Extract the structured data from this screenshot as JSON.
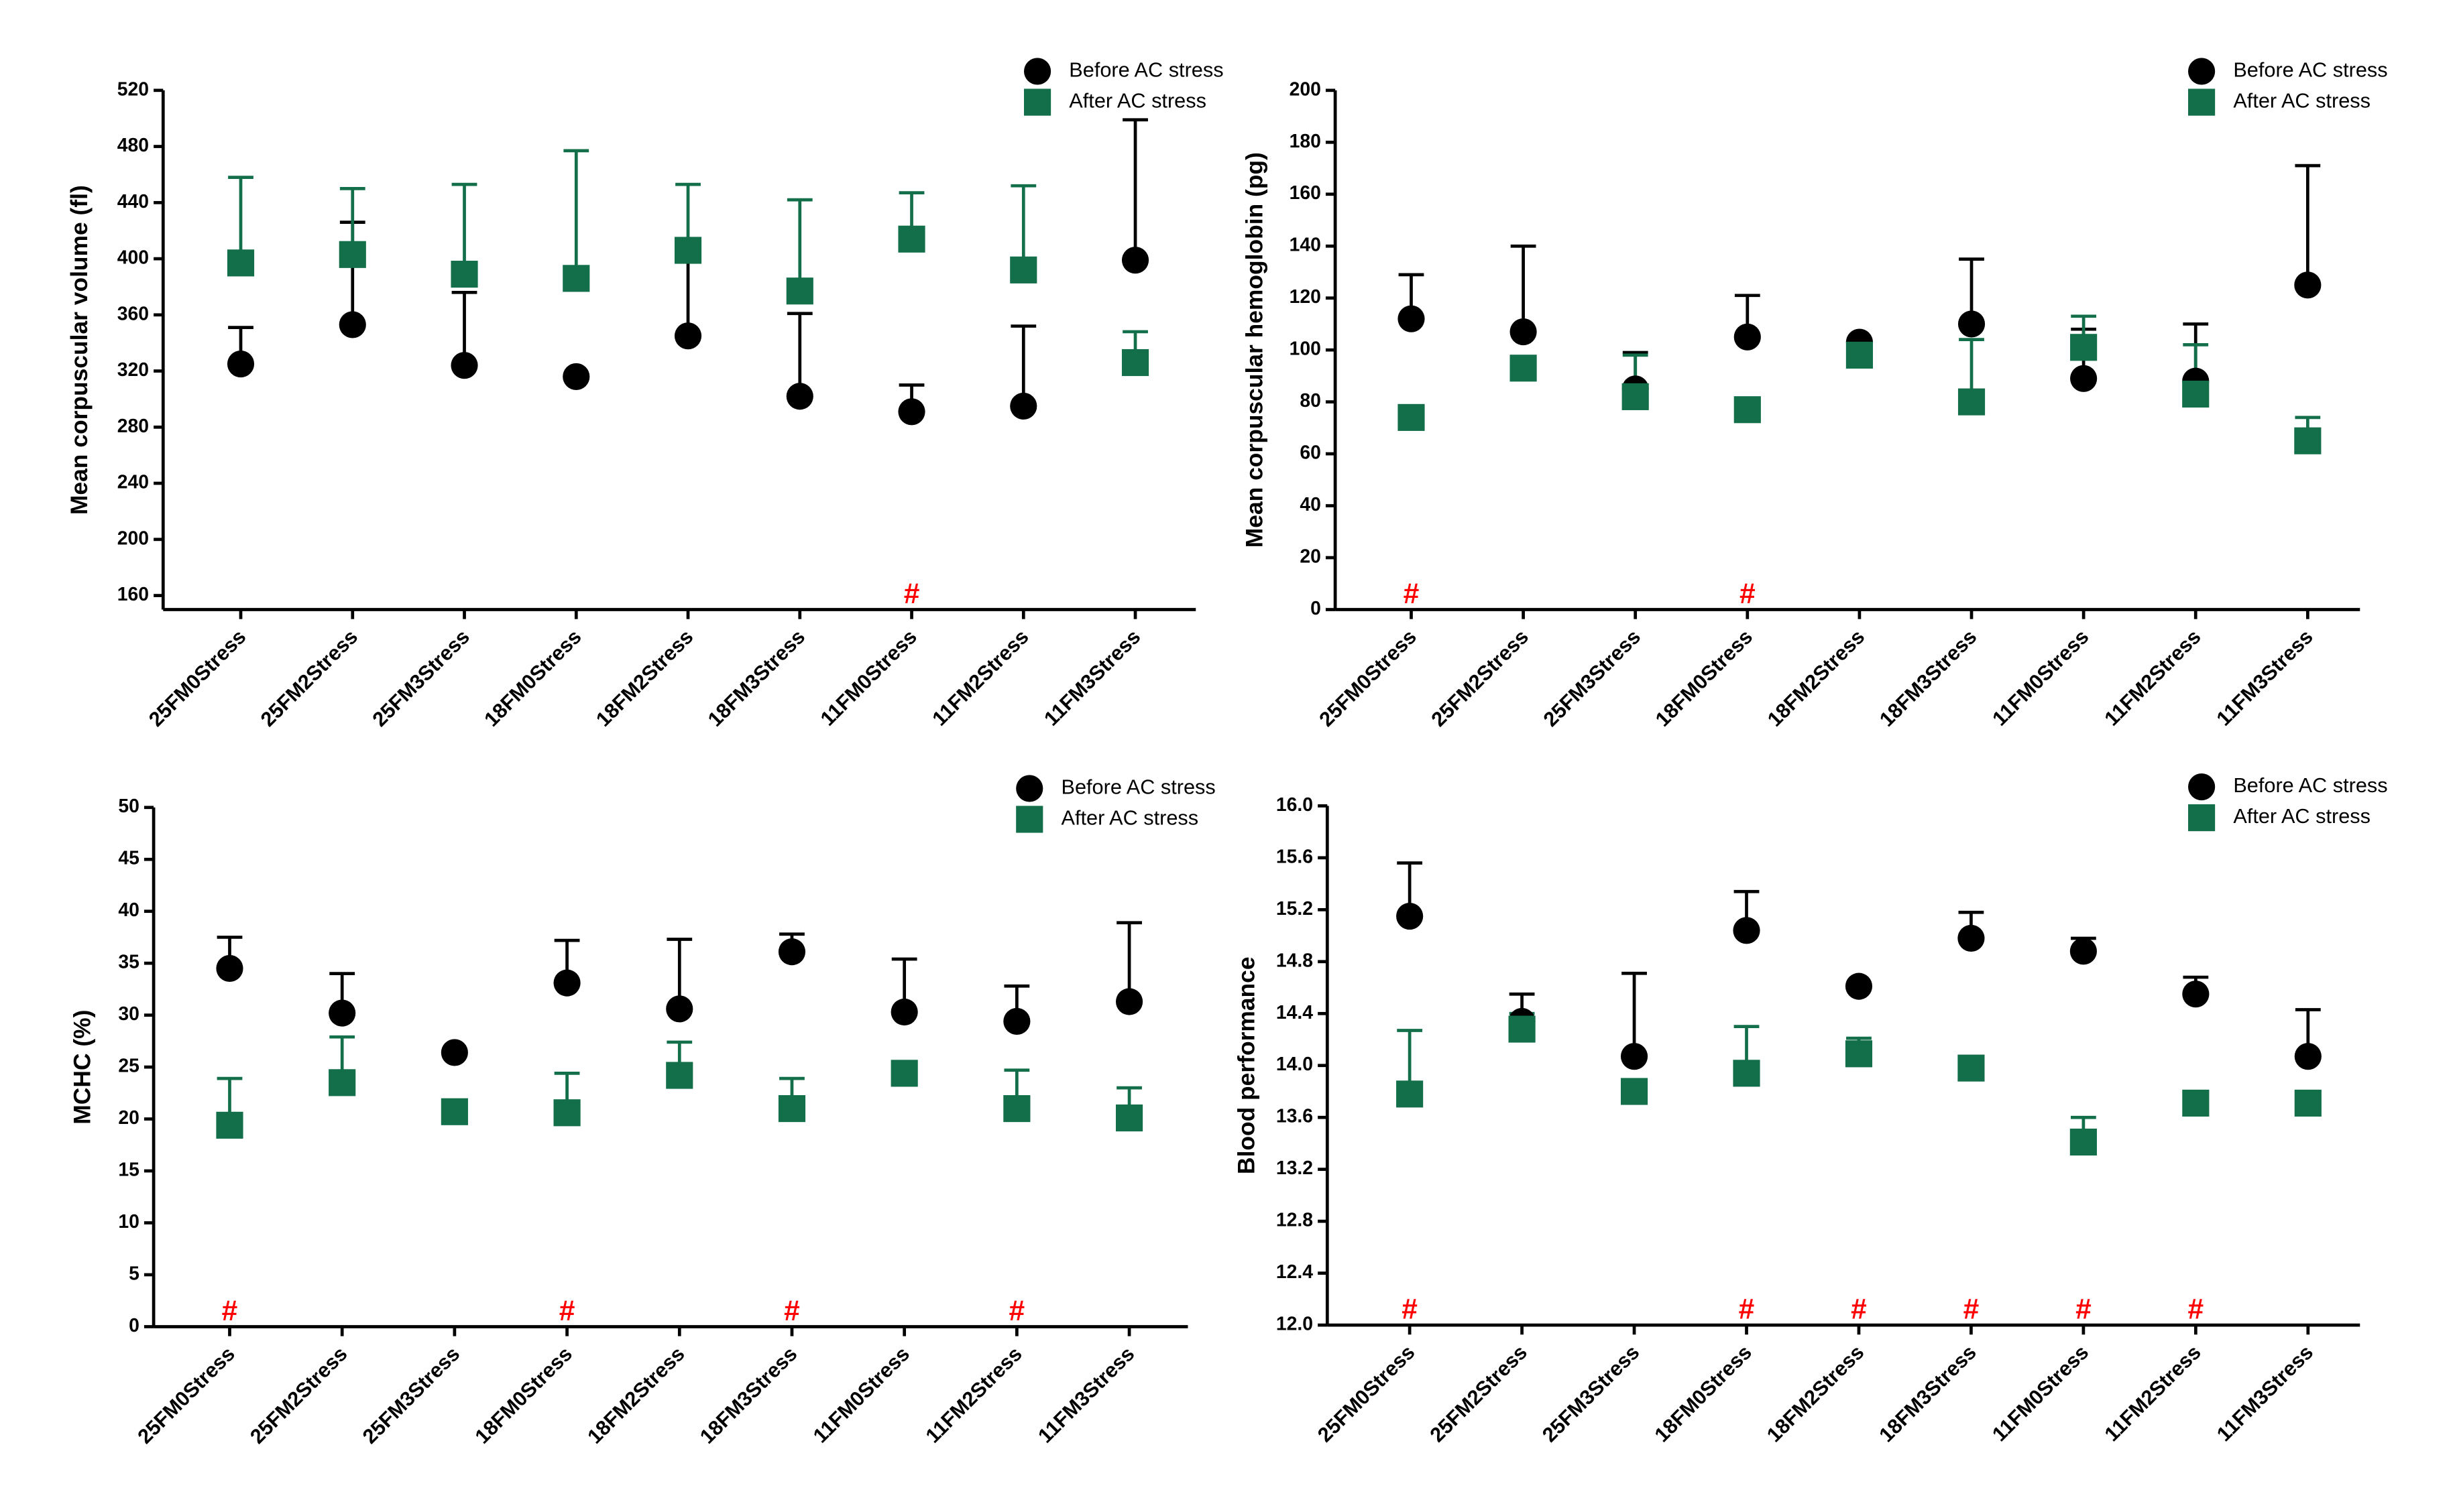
{
  "chart_data": [
    {
      "type": "scatter",
      "y_label": "Mean corpuscular volume (fl)",
      "legend": "upper right",
      "categories": [
        "25FM0Stress",
        "25FM2Stress",
        "25FM3Stress",
        "18FM0Stress",
        "18FM2Stress",
        "18FM3Stress",
        "11FM0Stress",
        "11FM2Stress",
        "11FM3Stress"
      ],
      "ylim": [
        150,
        520
      ],
      "yticks": [
        160,
        200,
        240,
        280,
        320,
        360,
        400,
        440,
        480,
        520
      ],
      "series": [
        {
          "name": "Before AC stress",
          "color": "#000000",
          "marker": "circle",
          "values": [
            325,
            353,
            324,
            316,
            345,
            302,
            291,
            295,
            399
          ],
          "errors": [
            26,
            73,
            52,
            0,
            59,
            59,
            19,
            57,
            100
          ]
        },
        {
          "name": "After AC stress",
          "color": "#136f4a",
          "marker": "square",
          "values": [
            397,
            403,
            389,
            386,
            406,
            377,
            414,
            392,
            326
          ],
          "errors": [
            61,
            47,
            64,
            91,
            47,
            65,
            33,
            60,
            22
          ]
        }
      ],
      "annotations": [
        {
          "text": "#",
          "category": "11FM0Stress"
        }
      ]
    },
    {
      "type": "scatter",
      "y_label": "Mean corpuscular hemoglobin (pg)",
      "legend": "upper right",
      "categories": [
        "25FM0Stress",
        "25FM2Stress",
        "25FM3Stress",
        "18FM0Stress",
        "18FM2Stress",
        "18FM3Stress",
        "11FM0Stress",
        "11FM2Stress",
        "11FM3Stress"
      ],
      "ylim": [
        0,
        200
      ],
      "yticks": [
        0,
        20,
        40,
        60,
        80,
        100,
        120,
        140,
        160,
        180,
        200
      ],
      "series": [
        {
          "name": "Before AC stress",
          "color": "#000000",
          "marker": "circle",
          "values": [
            112,
            107,
            85,
            105,
            103,
            110,
            89,
            88,
            125
          ],
          "errors": [
            17,
            33,
            14,
            16,
            0,
            25,
            19,
            22,
            46
          ]
        },
        {
          "name": "After AC stress",
          "color": "#136f4a",
          "marker": "square",
          "values": [
            74,
            93,
            82,
            77,
            98,
            80,
            101,
            83,
            65
          ],
          "errors": [
            0,
            0,
            16,
            0,
            0,
            24,
            12,
            19,
            9
          ]
        }
      ],
      "annotations": [
        {
          "text": "#",
          "category": "25FM0Stress"
        },
        {
          "text": "#",
          "category": "18FM0Stress"
        }
      ]
    },
    {
      "type": "scatter",
      "y_label": "MCHC (%)",
      "legend": "upper right",
      "categories": [
        "25FM0Stress",
        "25FM2Stress",
        "25FM3Stress",
        "18FM0Stress",
        "18FM2Stress",
        "18FM3Stress",
        "11FM0Stress",
        "11FM2Stress",
        "11FM3Stress"
      ],
      "ylim": [
        0,
        50
      ],
      "yticks": [
        0,
        5,
        10,
        15,
        20,
        25,
        30,
        35,
        40,
        45,
        50
      ],
      "series": [
        {
          "name": "Before AC stress",
          "color": "#000000",
          "marker": "circle",
          "values": [
            34.5,
            30.2,
            26.4,
            33.1,
            30.6,
            36.1,
            30.3,
            29.4,
            31.3
          ],
          "errors": [
            3,
            3.8,
            0,
            4.1,
            6.7,
            1.7,
            5.1,
            3.4,
            7.6
          ]
        },
        {
          "name": "After AC stress",
          "color": "#136f4a",
          "marker": "square",
          "values": [
            19.4,
            23.5,
            20.7,
            20.6,
            24.2,
            21.0,
            24.4,
            21.0,
            20.1
          ],
          "errors": [
            4.5,
            4.4,
            0,
            3.8,
            3.2,
            2.9,
            0,
            3.7,
            2.9
          ]
        }
      ],
      "annotations": [
        {
          "text": "#",
          "category": "25FM0Stress"
        },
        {
          "text": "#",
          "category": "18FM0Stress"
        },
        {
          "text": "#",
          "category": "18FM3Stress"
        },
        {
          "text": "#",
          "category": "11FM2Stress"
        }
      ]
    },
    {
      "type": "scatter",
      "y_label": "Blood performance",
      "legend": "upper right",
      "categories": [
        "25FM0Stress",
        "25FM2Stress",
        "25FM3Stress",
        "18FM0Stress",
        "18FM2Stress",
        "18FM3Stress",
        "11FM0Stress",
        "11FM2Stress",
        "11FM3Stress"
      ],
      "ylim": [
        12,
        16
      ],
      "yticks": [
        {
          "value": 12,
          "label": "12.0"
        },
        12.4,
        12.8,
        13.2,
        13.6,
        {
          "value": 14,
          "label": "14.0"
        },
        14.4,
        14.8,
        15.2,
        15.6,
        {
          "value": 16,
          "label": "16.0"
        }
      ],
      "series": [
        {
          "name": "Before AC stress",
          "color": "#000000",
          "marker": "circle",
          "values": [
            15.15,
            14.34,
            14.07,
            15.04,
            14.61,
            14.98,
            14.88,
            14.55,
            14.07
          ],
          "errors": [
            0.41,
            0.21,
            0.64,
            0.3,
            0,
            0.2,
            0.1,
            0.13,
            0.36
          ]
        },
        {
          "name": "After AC stress",
          "color": "#136f4a",
          "marker": "square",
          "values": [
            13.78,
            14.28,
            13.8,
            13.94,
            14.09,
            13.98,
            13.41,
            13.71,
            13.71
          ],
          "errors": [
            0.49,
            0.12,
            0,
            0.36,
            0.12,
            0,
            0.19,
            0,
            0
          ]
        }
      ],
      "annotations": [
        {
          "text": "#",
          "category": "25FM0Stress"
        },
        {
          "text": "#",
          "category": "18FM0Stress"
        },
        {
          "text": "#",
          "category": "18FM2Stress"
        },
        {
          "text": "#",
          "category": "18FM3Stress"
        },
        {
          "text": "#",
          "category": "11FM0Stress"
        },
        {
          "text": "#",
          "category": "11FM2Stress"
        }
      ]
    }
  ]
}
